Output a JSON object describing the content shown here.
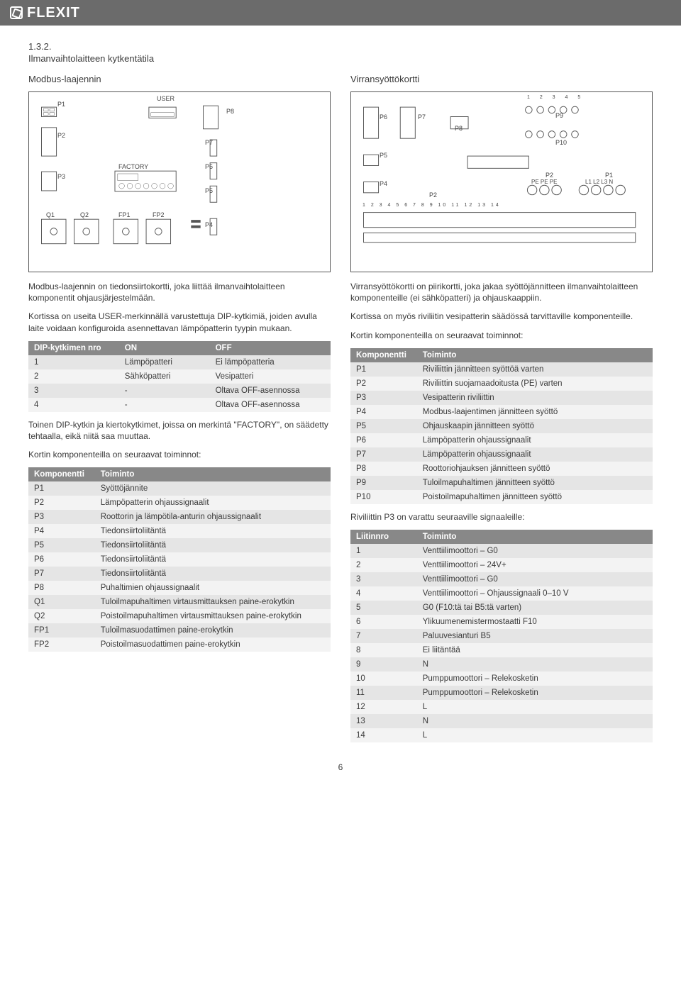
{
  "brand": "FLEXIT",
  "section_number": "1.3.2.",
  "section_title": "Ilmanvaihtolaitteen kytkentätila",
  "page_number": "6",
  "left": {
    "subtitle": "Modbus-laajennin",
    "diagram_labels": {
      "p1": "P1",
      "p2": "P2",
      "p3": "P3",
      "p4": "P4",
      "p5": "P5",
      "p6": "P6",
      "p7": "P7",
      "p8": "P8",
      "q1": "Q1",
      "q2": "Q2",
      "fp1": "FP1",
      "fp2": "FP2",
      "user": "USER",
      "factory": "FACTORY"
    },
    "para1": "Modbus-laajennin on tiedonsiirtokortti, joka liittää ilmanvaihtolaitteen komponentit ohjausjärjestelmään.",
    "para2": "Kortissa on useita USER-merkinnällä varustettuja DIP-kytkimiä, joiden avulla laite voidaan konfiguroida asennettavan lämpöpatterin tyypin mukaan.",
    "dip_table": {
      "headers": [
        "DIP-kytkimen nro",
        "ON",
        "OFF"
      ],
      "rows": [
        [
          "1",
          "Lämpöpatteri",
          "Ei lämpöpatteria"
        ],
        [
          "2",
          "Sähköpatteri",
          "Vesipatteri"
        ],
        [
          "3",
          "-",
          "Oltava OFF-asennossa"
        ],
        [
          "4",
          "-",
          "Oltava OFF-asennossa"
        ]
      ]
    },
    "para3": "Toinen DIP-kytkin ja kiertokytkimet, joissa on merkintä \"FACTORY\", on säädetty tehtaalla, eikä niitä saa muuttaa.",
    "para4": "Kortin komponenteilla on seuraavat toiminnot:",
    "comp_table": {
      "headers": [
        "Komponentti",
        "Toiminto"
      ],
      "rows": [
        [
          "P1",
          "Syöttöjännite"
        ],
        [
          "P2",
          "Lämpöpatterin ohjaussignaalit"
        ],
        [
          "P3",
          "Roottorin ja lämpötila-anturin ohjaussignaalit"
        ],
        [
          "P4",
          "Tiedonsiirtoliitäntä"
        ],
        [
          "P5",
          "Tiedonsiirtoliitäntä"
        ],
        [
          "P6",
          "Tiedonsiirtoliitäntä"
        ],
        [
          "P7",
          "Tiedonsiirtoliitäntä"
        ],
        [
          "P8",
          "Puhaltimien ohjaussignaalit"
        ],
        [
          "Q1",
          "Tuloilmapuhaltimen virtausmittauksen paine-erokytkin"
        ],
        [
          "Q2",
          "Poistoilmapuhaltimen virtausmittauksen paine-erokytkin"
        ],
        [
          "FP1",
          "Tuloilmasuodattimen paine-erokytkin"
        ],
        [
          "FP2",
          "Poistoilmasuodattimen paine-erokytkin"
        ]
      ]
    }
  },
  "right": {
    "subtitle": "Virransyöttökortti",
    "diagram_labels": {
      "p1": "P1",
      "p2": "P2",
      "p4": "P4",
      "p5": "P5",
      "p6": "P6",
      "p7": "P7",
      "p8": "P8",
      "p9": "P9",
      "p10": "P10",
      "pe": "PE PE PE",
      "l": "L1 L2 L3 N",
      "nums_top": "1   2   3   4   5",
      "nums_bottom": "1  2  3  4  5  6  7  8  9 10 11 12 13 14"
    },
    "para1": "Virransyöttökortti on piirikortti, joka jakaa syöttöjännitteen ilmanvaihtolaitteen komponenteille (ei sähköpatteri) ja ohjauskaappiin.",
    "para2": "Kortissa on myös riviliitin vesipatterin säädössä tarvittaville komponenteille.",
    "para3": "Kortin komponenteilla on seuraavat toiminnot:",
    "comp_table": {
      "headers": [
        "Komponentti",
        "Toiminto"
      ],
      "rows": [
        [
          "P1",
          "Riviliittin jännitteen syöttöä varten"
        ],
        [
          "P2",
          "Riviliittin suojamaadoitusta (PE) varten"
        ],
        [
          "P3",
          "Vesipatterin riviliittin"
        ],
        [
          "P4",
          "Modbus-laajentimen jännitteen syöttö"
        ],
        [
          "P5",
          "Ohjauskaapin jännitteen syöttö"
        ],
        [
          "P6",
          "Lämpöpatterin ohjaussignaalit"
        ],
        [
          "P7",
          "Lämpöpatterin ohjaussignaalit"
        ],
        [
          "P8",
          "Roottoriohjauksen jännitteen syöttö"
        ],
        [
          "P9",
          "Tuloilmapuhaltimen jännitteen syöttö"
        ],
        [
          "P10",
          "Poistoilmapuhaltimen jännitteen syöttö"
        ]
      ]
    },
    "para4": "Riviliittin P3 on varattu seuraaville signaaleille:",
    "liitin_table": {
      "headers": [
        "Liitinnro",
        "Toiminto"
      ],
      "rows": [
        [
          "1",
          "Venttiilimoottori – G0"
        ],
        [
          "2",
          "Venttiilimoottori – 24V+"
        ],
        [
          "3",
          "Venttiilimoottori – G0"
        ],
        [
          "4",
          "Venttiilimoottori – Ohjaussignaali 0–10 V"
        ],
        [
          "5",
          "G0 (F10:tä tai B5:tä varten)"
        ],
        [
          "6",
          "Ylikuumenemistermostaatti F10"
        ],
        [
          "7",
          "Paluuvesianturi B5"
        ],
        [
          "8",
          "Ei liitäntää"
        ],
        [
          "9",
          "N"
        ],
        [
          "10",
          "Pumppumoottori – Relekosketin"
        ],
        [
          "11",
          "Pumppumoottori – Relekosketin"
        ],
        [
          "12",
          "L"
        ],
        [
          "13",
          "N"
        ],
        [
          "14",
          "L"
        ]
      ]
    }
  }
}
